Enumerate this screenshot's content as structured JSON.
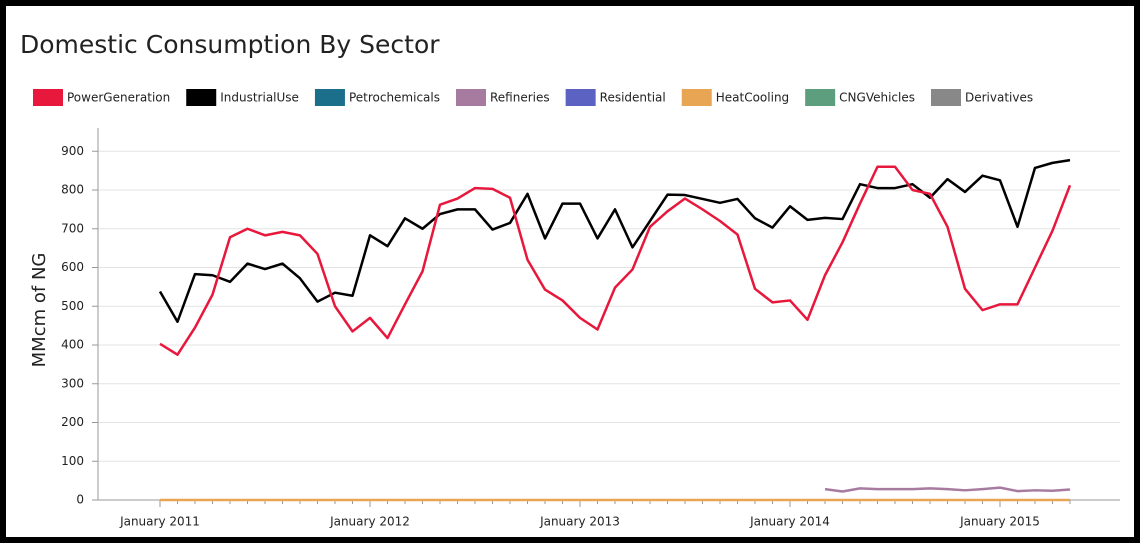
{
  "chart_data": {
    "type": "line",
    "title": "Domestic Consumption By Sector",
    "y_label": "MMcm of NG",
    "categories": [
      "January 2011",
      null,
      null,
      null,
      null,
      null,
      null,
      null,
      null,
      null,
      null,
      null,
      "January 2012",
      null,
      null,
      null,
      null,
      null,
      null,
      null,
      null,
      null,
      null,
      null,
      "January 2013",
      null,
      null,
      null,
      null,
      null,
      null,
      null,
      null,
      null,
      null,
      null,
      "January 2014",
      null,
      null,
      null,
      null,
      null,
      null,
      null,
      null,
      null,
      null,
      null,
      "January 2015",
      null,
      null,
      null,
      null
    ],
    "series": [
      {
        "name": "PowerGeneration",
        "color": "#e8173c",
        "values": [
          403,
          375,
          445,
          530,
          678,
          700,
          683,
          692,
          683,
          635,
          500,
          435,
          470,
          418,
          505,
          590,
          762,
          778,
          805,
          803,
          780,
          620,
          543,
          515,
          470,
          440,
          548,
          595,
          705,
          745,
          778,
          750,
          720,
          685,
          545,
          510,
          515,
          465,
          580,
          665,
          765,
          860,
          860,
          800,
          790,
          705,
          545,
          490,
          505,
          505,
          600,
          695,
          812
        ]
      },
      {
        "name": "IndustrialUse",
        "color": "#000000",
        "values": [
          538,
          460,
          583,
          580,
          563,
          610,
          596,
          610,
          572,
          512,
          535,
          527,
          683,
          655,
          727,
          700,
          738,
          750,
          750,
          698,
          715,
          790,
          675,
          765,
          765,
          675,
          750,
          652,
          720,
          788,
          787,
          777,
          767,
          777,
          727,
          703,
          758,
          723,
          728,
          725,
          815,
          805,
          805,
          815,
          780,
          828,
          795,
          837,
          825,
          705,
          857,
          870,
          877
        ]
      },
      {
        "name": "Petrochemicals",
        "color": "#1b6f8a",
        "values": [
          null,
          null,
          null,
          null,
          null,
          null,
          null,
          null,
          null,
          null,
          null,
          null,
          null,
          null,
          null,
          null,
          null,
          null,
          null,
          null,
          null,
          null,
          null,
          null,
          null,
          null,
          null,
          null,
          null,
          null,
          null,
          null,
          null,
          null,
          null,
          null,
          null,
          null,
          null,
          null,
          null,
          null,
          null,
          null,
          null,
          null,
          null,
          null,
          null,
          null,
          null,
          null,
          null
        ]
      },
      {
        "name": "Refineries",
        "color": "#a77ba0",
        "values": [
          null,
          null,
          null,
          null,
          null,
          null,
          null,
          null,
          null,
          null,
          null,
          null,
          null,
          null,
          null,
          null,
          null,
          null,
          null,
          null,
          null,
          null,
          null,
          null,
          null,
          null,
          null,
          null,
          null,
          null,
          null,
          null,
          null,
          null,
          null,
          null,
          null,
          null,
          28,
          22,
          30,
          28,
          28,
          28,
          30,
          28,
          25,
          28,
          32,
          23,
          25,
          24,
          27
        ]
      },
      {
        "name": "Residential",
        "color": "#5b62c2",
        "values": [
          null,
          null,
          null,
          null,
          null,
          null,
          null,
          null,
          null,
          null,
          null,
          null,
          null,
          null,
          null,
          null,
          null,
          null,
          null,
          null,
          null,
          null,
          null,
          null,
          null,
          null,
          null,
          null,
          null,
          null,
          null,
          null,
          null,
          null,
          null,
          null,
          null,
          null,
          null,
          null,
          null,
          null,
          null,
          null,
          null,
          null,
          null,
          null,
          null,
          null,
          null,
          null,
          null
        ]
      },
      {
        "name": "HeatCooling",
        "color": "#e8a655",
        "values": [
          0,
          0,
          0,
          0,
          0,
          0,
          0,
          0,
          0,
          0,
          0,
          0,
          0,
          0,
          0,
          0,
          0,
          0,
          0,
          0,
          0,
          0,
          0,
          0,
          0,
          0,
          0,
          0,
          0,
          0,
          0,
          0,
          0,
          0,
          0,
          0,
          0,
          0,
          0,
          0,
          0,
          0,
          0,
          0,
          0,
          0,
          0,
          0,
          0,
          0,
          0,
          0,
          0
        ]
      },
      {
        "name": "CNGVehicles",
        "color": "#5c9e7e",
        "values": [
          null,
          null,
          null,
          null,
          null,
          null,
          null,
          null,
          null,
          null,
          null,
          null,
          null,
          null,
          null,
          null,
          null,
          null,
          null,
          null,
          null,
          null,
          null,
          null,
          null,
          null,
          null,
          null,
          null,
          null,
          null,
          null,
          null,
          null,
          null,
          null,
          null,
          null,
          null,
          null,
          null,
          null,
          null,
          null,
          null,
          null,
          null,
          null,
          null,
          null,
          null,
          null,
          null
        ]
      },
      {
        "name": "Derivatives",
        "color": "#888888",
        "values": [
          null,
          null,
          null,
          null,
          null,
          null,
          null,
          null,
          null,
          null,
          null,
          null,
          null,
          null,
          null,
          null,
          null,
          null,
          null,
          null,
          null,
          null,
          null,
          null,
          null,
          null,
          null,
          null,
          null,
          null,
          null,
          null,
          null,
          null,
          null,
          null,
          null,
          null,
          null,
          null,
          null,
          null,
          null,
          null,
          null,
          null,
          null,
          null,
          null,
          null,
          null,
          null,
          null
        ]
      }
    ],
    "ylim": [
      0,
      960
    ],
    "yticks": [
      0,
      100,
      200,
      300,
      400,
      500,
      600,
      700,
      800,
      900
    ],
    "grid": true
  }
}
